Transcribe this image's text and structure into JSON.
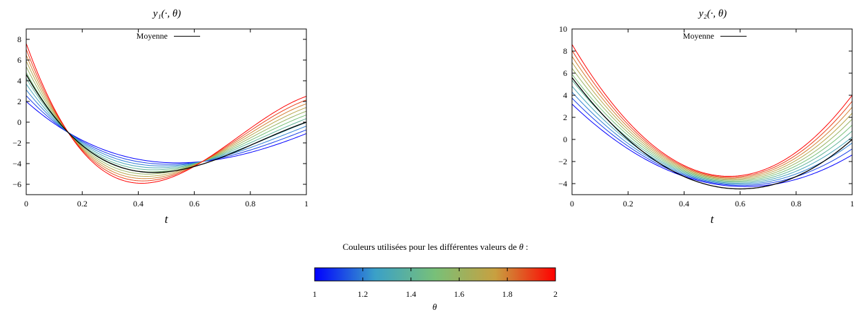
{
  "chart_data": [
    {
      "type": "line",
      "title": "y₁(·, θ)",
      "xlabel": "t",
      "ylabel": "",
      "xlim": [
        0,
        1
      ],
      "ylim": [
        -7,
        9
      ],
      "xticks": [
        "0",
        "0.2",
        "0.4",
        "0.6",
        "0.8",
        "1"
      ],
      "yticks": [
        "8",
        "6",
        "4",
        "2",
        "0",
        "−2",
        "−4",
        "−6"
      ],
      "legend": {
        "label": "Moyenne",
        "placement": "top-center"
      },
      "theta_range": [
        1,
        2
      ],
      "curve_count": 11,
      "x_samples": [
        0,
        0.15,
        0.5,
        1
      ],
      "series_theta_1": [
        2.0,
        -1.0,
        -3.9,
        -1.1
      ],
      "series_theta_2": [
        7.6,
        -1.0,
        -5.5,
        2.5
      ],
      "mean_series": [
        4.6,
        -1.0,
        -4.8,
        0.0
      ],
      "mean_color": "#000000"
    },
    {
      "type": "line",
      "title": "y₂(·, θ)",
      "xlabel": "t",
      "ylabel": "",
      "xlim": [
        0,
        1
      ],
      "ylim": [
        -5,
        10
      ],
      "xticks": [
        "0",
        "0.2",
        "0.4",
        "0.6",
        "0.8",
        "1"
      ],
      "yticks": [
        "10",
        "8",
        "6",
        "4",
        "2",
        "0",
        "−2",
        "−4"
      ],
      "legend": {
        "label": "Moyenne",
        "placement": "top-center"
      },
      "theta_range": [
        1,
        2
      ],
      "curve_count": 11,
      "x_samples": [
        0,
        0.5,
        1
      ],
      "series_theta_1": [
        3.2,
        -4.0,
        -1.4
      ],
      "series_theta_2": [
        8.6,
        -3.2,
        4.0
      ],
      "mean_series": [
        5.6,
        -4.2,
        0.0
      ],
      "mean_color": "#000000"
    }
  ],
  "colorbar": {
    "caption_text": "Couleurs utilisées pour les différentes valeurs de",
    "caption_symbol": "θ",
    "caption_suffix": " :",
    "min": 1,
    "max": 2,
    "ticks": [
      "1",
      "1.2",
      "1.4",
      "1.6",
      "1.8",
      "2"
    ],
    "label": "θ",
    "colors": [
      "#0000ff",
      "#3aa0c8",
      "#78c078",
      "#c8a040",
      "#ff0000"
    ]
  }
}
